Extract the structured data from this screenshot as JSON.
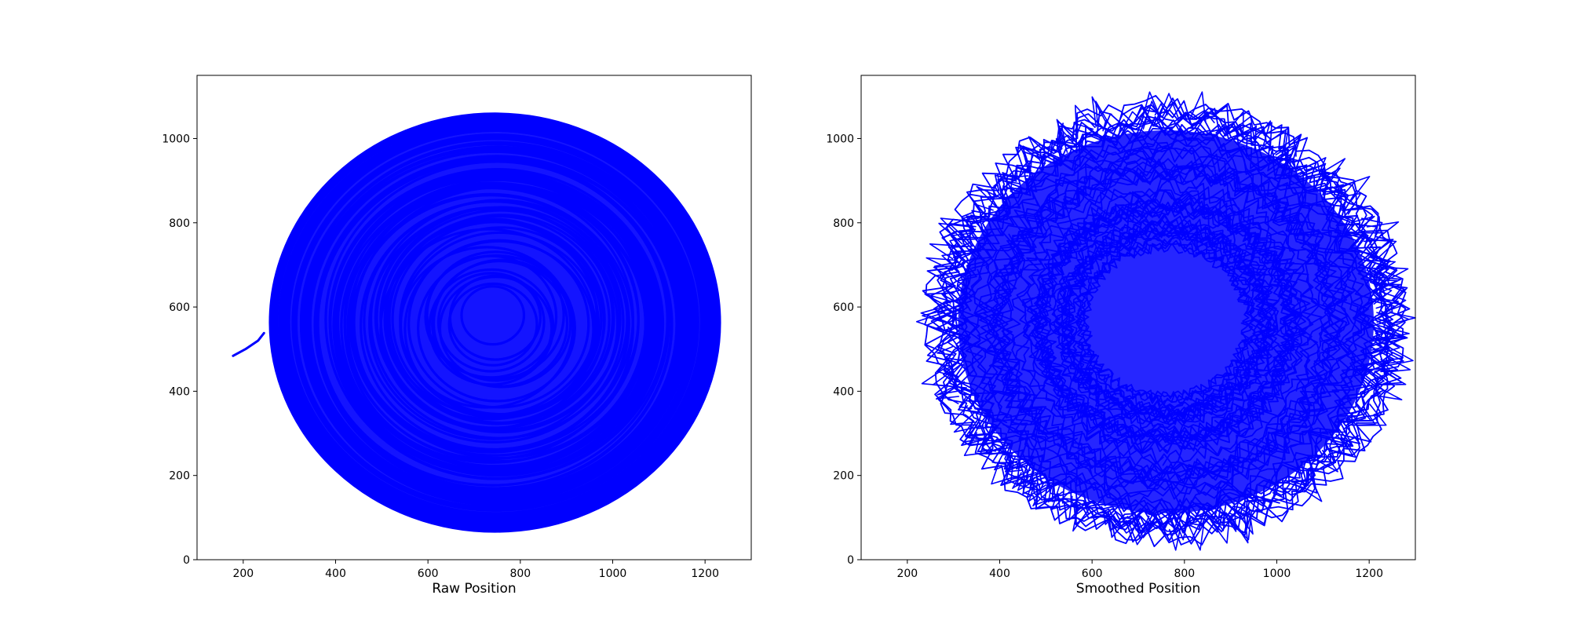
{
  "chart_data": [
    {
      "type": "line",
      "title": "",
      "xlabel": "Raw Position",
      "ylabel": "",
      "xlim": [
        100,
        1300
      ],
      "ylim": [
        0,
        1150
      ],
      "xticks": [
        200,
        400,
        600,
        800,
        1000,
        1200
      ],
      "yticks": [
        0,
        200,
        400,
        600,
        800,
        1000
      ],
      "grid": false,
      "series": [
        {
          "color": "#0000ff",
          "shape": "elliptical orbit",
          "center": [
            745,
            563
          ],
          "radius_x": 488,
          "radius_y": 497,
          "tail": [
            [
              178,
              484
            ],
            [
              205,
              500
            ],
            [
              232,
              520
            ],
            [
              245,
              538
            ]
          ]
        }
      ]
    },
    {
      "type": "line",
      "title": "",
      "xlabel": "Smoothed Position",
      "ylabel": "",
      "xlim": [
        100,
        1300
      ],
      "ylim": [
        0,
        1150
      ],
      "xticks": [
        200,
        400,
        600,
        800,
        1000,
        1200
      ],
      "yticks": [
        0,
        200,
        400,
        600,
        800,
        1000
      ],
      "grid": false,
      "series": [
        {
          "color": "#0000ff",
          "shape": "noisy elliptical orbit",
          "center": [
            760,
            565
          ],
          "radius_x": 500,
          "radius_y": 505,
          "extent_x": [
            140,
            1300
          ],
          "extent_y": [
            15,
            1130
          ]
        }
      ]
    }
  ]
}
